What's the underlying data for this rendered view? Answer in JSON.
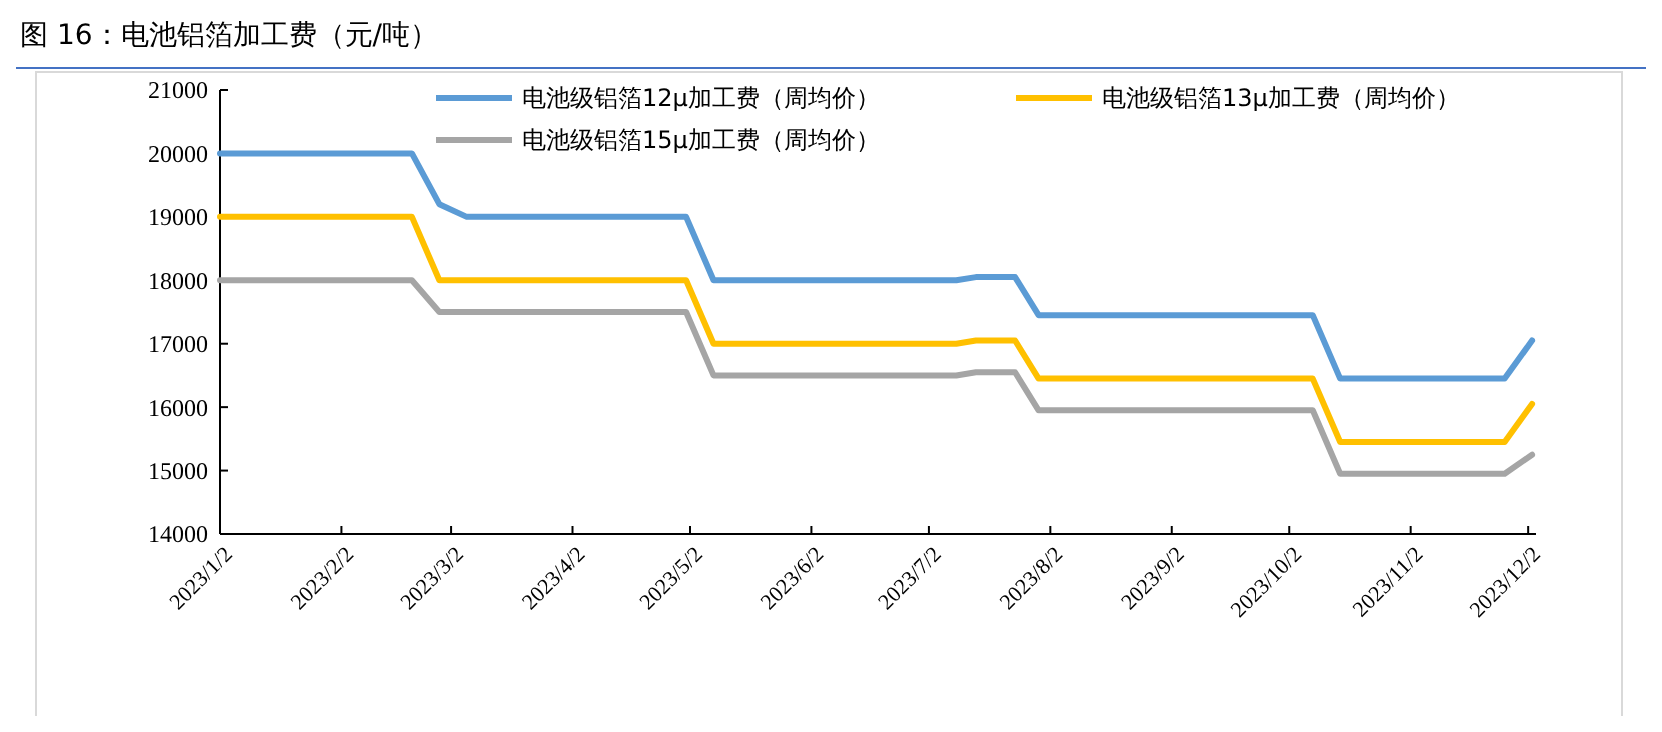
{
  "chart_data": {
    "type": "line",
    "title": "图 16：电池铝箔加工费（元/吨）",
    "xlim": [
      "2023-01-02",
      "2023-12-04"
    ],
    "xticks": [
      {
        "value": "2023-01-02",
        "label": "2023/1/2"
      },
      {
        "value": "2023-02-02",
        "label": "2023/2/2"
      },
      {
        "value": "2023-03-02",
        "label": "2023/3/2"
      },
      {
        "value": "2023-04-02",
        "label": "2023/4/2"
      },
      {
        "value": "2023-05-02",
        "label": "2023/5/2"
      },
      {
        "value": "2023-06-02",
        "label": "2023/6/2"
      },
      {
        "value": "2023-07-02",
        "label": "2023/7/2"
      },
      {
        "value": "2023-08-02",
        "label": "2023/8/2"
      },
      {
        "value": "2023-09-02",
        "label": "2023/9/2"
      },
      {
        "value": "2023-10-02",
        "label": "2023/10/2"
      },
      {
        "value": "2023-11-02",
        "label": "2023/11/2"
      },
      {
        "value": "2023-12-02",
        "label": "2023/12/2"
      }
    ],
    "ylim": [
      14000,
      21000
    ],
    "yticks": [
      14000,
      15000,
      16000,
      17000,
      18000,
      19000,
      20000,
      21000
    ],
    "grid": false,
    "legend": "top",
    "marker": "none",
    "line_style": "solid",
    "series": [
      {
        "name": "电池级铝箔12μ加工费（周均价）",
        "color": "#5b9bd5",
        "x": [
          "2023-01-02",
          "2023-02-20",
          "2023-02-27",
          "2023-03-06",
          "2023-05-01",
          "2023-05-08",
          "2023-07-09",
          "2023-07-14",
          "2023-07-24",
          "2023-07-30",
          "2023-10-08",
          "2023-10-15",
          "2023-11-26",
          "2023-12-03"
        ],
        "values": [
          20000,
          20000,
          19200,
          19000,
          19000,
          18000,
          18000,
          18050,
          18050,
          17450,
          17450,
          16450,
          16450,
          17050
        ]
      },
      {
        "name": "电池级铝箔13μ加工费（周均价）",
        "color": "#ffc000",
        "x": [
          "2023-01-02",
          "2023-02-20",
          "2023-02-27",
          "2023-05-01",
          "2023-05-08",
          "2023-07-09",
          "2023-07-14",
          "2023-07-24",
          "2023-07-30",
          "2023-10-08",
          "2023-10-15",
          "2023-11-26",
          "2023-12-03"
        ],
        "values": [
          19000,
          19000,
          18000,
          18000,
          17000,
          17000,
          17050,
          17050,
          16450,
          16450,
          15450,
          15450,
          16050
        ]
      },
      {
        "name": "电池级铝箔15μ加工费（周均价）",
        "color": "#a5a5a5",
        "x": [
          "2023-01-02",
          "2023-02-20",
          "2023-02-27",
          "2023-05-01",
          "2023-05-08",
          "2023-07-09",
          "2023-07-14",
          "2023-07-24",
          "2023-07-30",
          "2023-10-08",
          "2023-10-15",
          "2023-11-26",
          "2023-12-03"
        ],
        "values": [
          18000,
          18000,
          17500,
          17500,
          16500,
          16500,
          16550,
          16550,
          15950,
          15950,
          14950,
          14950,
          15250
        ]
      }
    ]
  }
}
